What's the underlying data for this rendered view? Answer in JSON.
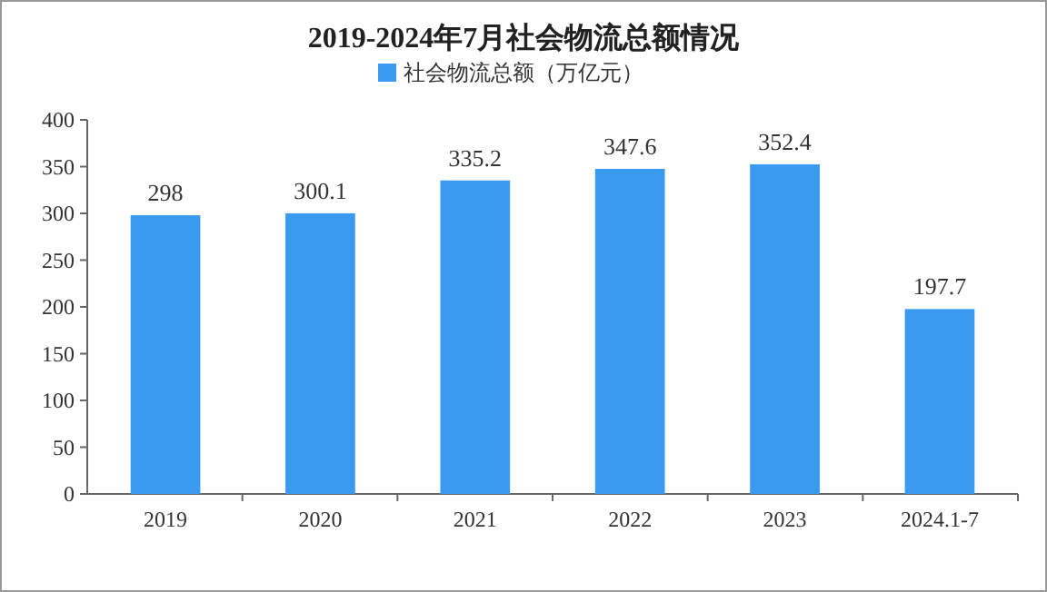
{
  "chart_data": {
    "type": "bar",
    "title": "2019-2024年7月社会物流总额情况",
    "categories": [
      "2019",
      "2020",
      "2021",
      "2022",
      "2023",
      "2024.1-7"
    ],
    "series": [
      {
        "name": "社会物流总额（万亿元）",
        "color": "#3a9af0",
        "values": [
          298,
          300.1,
          335.2,
          347.6,
          352.4,
          197.7
        ]
      }
    ],
    "ylim": [
      0,
      400
    ],
    "yticks": [
      0,
      50,
      100,
      150,
      200,
      250,
      300,
      350,
      400
    ],
    "grid": false,
    "legend": "top",
    "data_labels": true
  }
}
